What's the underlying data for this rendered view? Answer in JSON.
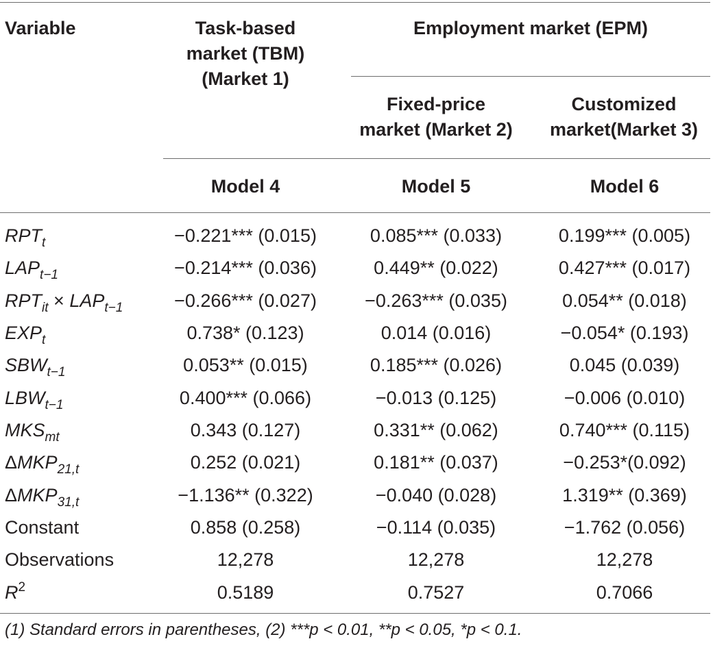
{
  "header": {
    "variable": "Variable",
    "tbm_line1": "Task-based",
    "tbm_line2": "market (TBM)",
    "tbm_line3": "(Market 1)",
    "epm": "Employment market (EPM)",
    "fixed_line1": "Fixed-price",
    "fixed_line2": "market (Market 2)",
    "custom_line1": "Customized",
    "custom_line2": "market(Market 3)",
    "model4": "Model 4",
    "model5": "Model 5",
    "model6": "Model 6"
  },
  "rows": [
    {
      "var": "RPT",
      "sub": "t",
      "m4": "−0.221*** (0.015)",
      "m5": "0.085*** (0.033)",
      "m6": "0.199*** (0.005)"
    },
    {
      "var": "LAP",
      "sub": "t−1",
      "m4": "−0.214*** (0.036)",
      "m5": "0.449** (0.022)",
      "m6": "0.427*** (0.017)"
    },
    {
      "var": "RPT",
      "sub": "it",
      "times": "×",
      "var2": "LAP",
      "sub2": "t−1",
      "m4": "−0.266*** (0.027)",
      "m5": "−0.263*** (0.035)",
      "m6": "0.054** (0.018)"
    },
    {
      "var": "EXP",
      "sub": "t",
      "m4": "0.738* (0.123)",
      "m5": "0.014 (0.016)",
      "m6": "−0.054* (0.193)"
    },
    {
      "var": "SBW",
      "sub": "t−1",
      "m4": "0.053** (0.015)",
      "m5": "0.185*** (0.026)",
      "m6": "0.045 (0.039)"
    },
    {
      "var": "LBW",
      "sub": "t−1",
      "m4": "0.400*** (0.066)",
      "m5": "−0.013 (0.125)",
      "m6": "−0.006 (0.010)"
    },
    {
      "var": "MKS",
      "sub": "mt",
      "m4": "0.343 (0.127)",
      "m5": "0.331** (0.062)",
      "m6": "0.740*** (0.115)"
    },
    {
      "delta": "Δ",
      "var": "MKP",
      "sub": "21,t",
      "m4": "0.252 (0.021)",
      "m5": "0.181** (0.037)",
      "m6": "−0.253*(0.092)"
    },
    {
      "delta": "Δ",
      "var": "MKP",
      "sub": "31,t",
      "m4": "−1.136** (0.322)",
      "m5": "−0.040 (0.028)",
      "m6": "1.319** (0.369)"
    },
    {
      "label": "Constant",
      "m4": "0.858 (0.258)",
      "m5": "−0.114 (0.035)",
      "m6": "−1.762 (0.056)"
    },
    {
      "label": "Observations",
      "m4": "12,278",
      "m5": "12,278",
      "m6": "12,278"
    },
    {
      "var": "R",
      "sup": "2",
      "m4": "0.5189",
      "m5": "0.7527",
      "m6": "0.7066"
    }
  ],
  "footnote": "(1) Standard errors in parentheses, (2) ***p < 0.01, **p < 0.05, *p < 0.1."
}
